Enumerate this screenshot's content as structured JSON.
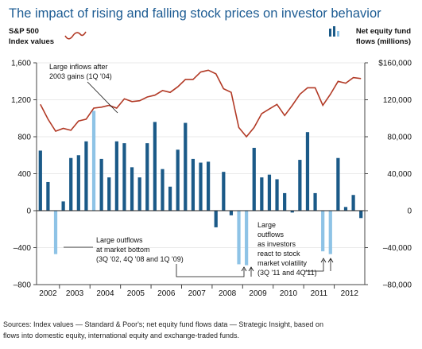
{
  "title": "The impact of rising and falling stock prices on investor behavior",
  "legend": {
    "left_line1": "S&P 500",
    "left_line2": "Index values",
    "right_line1": "Net equity fund",
    "right_line2": "flows (millions)"
  },
  "source_line1": "Sources: Index values — Standard & Poor's; net equity fund flows data — Strategic Insight, based on",
  "source_line2": "flows into domestic equity, international equity and exchange-traded funds.",
  "annotations": {
    "inflow_line1": "Large inflows after",
    "inflow_line2": "2003 gains (1Q '04)",
    "outflow1_line1": "Large outflows",
    "outflow1_line2": "at market bottom",
    "outflow1_line3": "(3Q '02, 4Q '08 and 1Q '09)",
    "outflow2_line1": "Large",
    "outflow2_line2": "outflows",
    "outflow2_line3": "as investors",
    "outflow2_line4": "react to stock",
    "outflow2_line5": "market volatility",
    "outflow2_line6": "(3Q '11 and 4Q'11)"
  },
  "colors": {
    "title": "#1d5c93",
    "bar": "#1b5a88",
    "bar_highlight": "#8ec3e6",
    "line": "#b23a26",
    "grid": "#e2e2e2",
    "axis": "#444444"
  },
  "chart_data": {
    "type": "bar+line",
    "x_tick_labels": [
      "2002",
      "2003",
      "2004",
      "2005",
      "2006",
      "2007",
      "2008",
      "2009",
      "2010",
      "2011",
      "2012"
    ],
    "left_axis": {
      "title": "S&P 500 Index values",
      "ylim": [
        -800,
        1600
      ],
      "ticks": [
        -800,
        -400,
        0,
        400,
        800,
        1200,
        1600
      ],
      "tick_labels": [
        "–800",
        "–400",
        "0",
        "400",
        "800",
        "1,200",
        "1,600"
      ]
    },
    "right_axis": {
      "title": "Net equity fund flows (millions)",
      "ylim": [
        -80000,
        160000
      ],
      "ticks": [
        -80000,
        -40000,
        0,
        40000,
        80000,
        120000,
        160000
      ],
      "tick_labels": [
        "–80,000",
        "–40,000",
        "0",
        "40,000",
        "80,000",
        "120,000",
        "$160,000"
      ]
    },
    "grid": true,
    "bars": {
      "name": "Net equity fund flows",
      "axis": "right",
      "values": [
        65000,
        31000,
        -47000,
        10000,
        57000,
        60000,
        75000,
        108000,
        56000,
        36000,
        75000,
        73000,
        47000,
        36000,
        73000,
        96000,
        45000,
        26000,
        66000,
        95000,
        56000,
        52000,
        53000,
        -18000,
        42000,
        -5000,
        -58000,
        -59000,
        68000,
        36000,
        39000,
        34000,
        19000,
        -2000,
        55000,
        85000,
        19000,
        -44000,
        -47000,
        57000,
        4000,
        17000,
        -8000
      ],
      "highlight_indices": [
        2,
        7,
        26,
        27,
        37,
        38
      ]
    },
    "line": {
      "name": "S&P 500",
      "axis": "left",
      "values": [
        1150,
        990,
        860,
        890,
        870,
        970,
        990,
        1110,
        1120,
        1140,
        1110,
        1210,
        1180,
        1190,
        1230,
        1250,
        1300,
        1280,
        1340,
        1420,
        1420,
        1500,
        1520,
        1480,
        1320,
        1280,
        900,
        800,
        900,
        1050,
        1100,
        1150,
        1030,
        1140,
        1260,
        1330,
        1330,
        1140,
        1260,
        1400,
        1380,
        1440,
        1430
      ]
    }
  }
}
